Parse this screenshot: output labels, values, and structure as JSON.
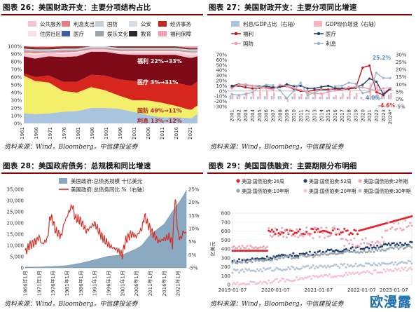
{
  "panels": {
    "p26": {
      "title": "图表 26：美国财政开支：主要分项结构占比",
      "source": "资料来源：Wind，Bloomberg，中信建投证券",
      "ann": {
        "welfare": "福利 22%→33%",
        "medical": "医疗 3%→31%",
        "defense": "国防 49%→11%",
        "interest": "利息 13%→12%"
      }
    },
    "p27": {
      "title": "图表 27：美国财政开支：主要分项同比增速",
      "source": "资料来源：Wind，Bloomberg，中信建投证券",
      "ann": {
        "hi": "25.2%",
        "mid": "4.0%",
        "lo": "-4.6%"
      }
    },
    "p28": {
      "title": "图表 28：美国政府债务：总规模和同比增速",
      "source": "资料来源：Wind，Bloomberg，中信建投证券"
    },
    "p29": {
      "title": "图表 29：美国国债融资：主要期限分布明细",
      "source": "资料来源：Wind，Bloomberg，中信建投证券"
    }
  },
  "watermark": "欧漫露",
  "colors": {
    "titlebar": "#8b0000"
  },
  "chart_data": [
    {
      "id": "fig26",
      "type": "area",
      "title": "图表 26：美国财政开支：主要分项结构占比",
      "xlabel": "",
      "ylabel": "",
      "ylim": [
        0,
        100
      ],
      "x_ticks": [
        "1961",
        "1966",
        "1971",
        "1976",
        "1981",
        "1986",
        "1991",
        "1996",
        "2001",
        "2006",
        "2011",
        "2016",
        "2021"
      ],
      "y_ticks": [
        "0%",
        "10%",
        "20%",
        "30%",
        "40%",
        "50%",
        "60%",
        "70%",
        "80%",
        "90%",
        "100%"
      ],
      "legend": "top",
      "x": [
        1961,
        1965,
        1970,
        1975,
        1980,
        1985,
        1990,
        1995,
        2000,
        2005,
        2010,
        2015,
        2020,
        2021,
        2022,
        2023
      ],
      "series": [
        {
          "name": "利息",
          "color": "#a9c4de",
          "values": [
            13,
            12,
            13,
            15,
            16,
            20,
            20,
            19,
            15,
            11,
            8,
            8,
            7,
            7,
            10,
            12
          ]
        },
        {
          "name": "国防",
          "color": "#f4ef6b",
          "values": [
            49,
            43,
            40,
            27,
            24,
            27,
            23,
            17,
            15,
            19,
            19,
            15,
            11,
            11,
            11,
            11
          ]
        },
        {
          "name": "医疗",
          "color": "#d7261e",
          "values": [
            3,
            5,
            9,
            12,
            14,
            16,
            19,
            21,
            25,
            25,
            27,
            30,
            31,
            31,
            31,
            31
          ]
        },
        {
          "name": "福利",
          "color": "#7f0a17",
          "values": [
            22,
            24,
            25,
            32,
            33,
            30,
            31,
            33,
            34,
            34,
            35,
            36,
            36,
            36,
            34,
            33
          ]
        },
        {
          "name": "公共服务",
          "color": "#f3c3cf",
          "values": [
            4,
            5,
            4,
            4,
            4,
            2,
            2,
            2,
            3,
            3,
            3,
            3,
            4,
            4,
            3,
            3
          ]
        },
        {
          "name": "住房社区",
          "color": "#fbe0e6",
          "values": [
            1,
            2,
            1,
            2,
            2,
            1,
            1,
            2,
            2,
            2,
            2,
            2,
            3,
            3,
            3,
            2
          ]
        },
        {
          "name": "利息支出",
          "color": "#e87d86",
          "values": [
            2,
            2,
            1,
            2,
            1,
            1,
            1,
            1,
            1,
            1,
            1,
            1,
            1,
            1,
            1,
            1
          ]
        },
        {
          "name": "医疗",
          "color": "#3f5da4",
          "values": [
            0,
            0,
            0,
            0,
            0,
            0,
            0,
            0,
            0,
            0,
            0,
            0,
            0,
            0,
            0,
            0
          ]
        },
        {
          "name": "娱乐文化",
          "color": "#9aa5ad",
          "values": [
            1,
            1,
            1,
            1,
            1,
            1,
            1,
            1,
            1,
            1,
            1,
            1,
            1,
            1,
            1,
            1
          ]
        },
        {
          "name": "国防",
          "color": "#c9ced2",
          "values": [
            1,
            1,
            1,
            1,
            1,
            1,
            1,
            1,
            1,
            1,
            1,
            1,
            1,
            1,
            1,
            1
          ]
        },
        {
          "name": "公安",
          "color": "#d5dce3",
          "values": [
            1,
            1,
            1,
            1,
            1,
            1,
            1,
            1,
            1,
            1,
            1,
            1,
            1,
            1,
            1,
            1
          ]
        },
        {
          "name": "教育",
          "color": "#2a2a2a",
          "values": [
            1,
            1,
            1,
            1,
            1,
            1,
            1,
            1,
            1,
            1,
            1,
            1,
            1,
            1,
            1,
            1
          ]
        },
        {
          "name": "经济事务",
          "color": "#c0281f",
          "values": [
            2,
            2,
            2,
            2,
            2,
            1,
            1,
            1,
            1,
            1,
            1,
            1,
            1,
            1,
            1,
            1
          ]
        },
        {
          "name": "福利保障",
          "color": "#f4a0b0",
          "values": [
            0,
            1,
            1,
            1,
            1,
            1,
            1,
            1,
            1,
            1,
            1,
            1,
            1,
            1,
            1,
            1
          ]
        }
      ],
      "annotations": [
        "福利 22%→33%",
        "医疗 3%→31%",
        "国防 49%→11%",
        "利息 13%→12%"
      ]
    },
    {
      "id": "fig27",
      "type": "line",
      "title": "图表 27：美国财政开支：主要分项同比增速",
      "categories": [
        "2001",
        "2002",
        "2003",
        "2004",
        "2005",
        "2006",
        "2007",
        "2008",
        "2009",
        "2010",
        "2011",
        "2012",
        "2013",
        "2014",
        "2015",
        "2016",
        "2017",
        "2018",
        "2019",
        "2020",
        "2021",
        "2022",
        "2023",
        "2024*"
      ],
      "y_left_ticks": [
        "-30%",
        "-20%",
        "-10%",
        "0%",
        "10%",
        "20%",
        "30%",
        "40%",
        "50%",
        "60%",
        "70%"
      ],
      "y_right_ticks": [
        "-5%",
        "0%",
        "5%",
        "10%",
        "15%",
        "20%",
        "25%",
        "30%"
      ],
      "ylim_left": [
        -30,
        70
      ],
      "ylim_right": [
        -5,
        30
      ],
      "legend": "top",
      "series": [
        {
          "name": "利息/GDP占比（右轴）",
          "axis": "right",
          "kind": "bar",
          "color": "#a8c1dc",
          "values": [
            2.5,
            2.0,
            1.8,
            1.7,
            1.8,
            2.0,
            2.1,
            2.1,
            1.9,
            1.7,
            1.9,
            1.6,
            1.5,
            1.5,
            1.4,
            1.5,
            1.6,
            1.7,
            1.8,
            1.6,
            1.5,
            1.9,
            2.4,
            3.1
          ]
        },
        {
          "name": "GDP现价增速（右轴）",
          "axis": "right",
          "kind": "bar",
          "color": "#f5b5c3",
          "values": [
            3.2,
            3.3,
            4.8,
            6.6,
            6.7,
            6.0,
            4.7,
            2.0,
            -2.0,
            3.9,
            3.6,
            4.2,
            3.6,
            4.2,
            4.0,
            2.7,
            4.2,
            5.4,
            4.1,
            -0.9,
            10.7,
            9.8,
            6.2,
            4.0
          ]
        },
        {
          "name": "福利",
          "axis": "left",
          "kind": "line",
          "color": "#c0161b",
          "values": [
            8,
            10,
            7,
            5,
            6,
            6,
            5,
            8,
            9,
            4,
            0,
            -1,
            2,
            3,
            3,
            4,
            3,
            4,
            6,
            45,
            49,
            -2,
            -8,
            4
          ]
        },
        {
          "name": "医疗",
          "axis": "left",
          "kind": "line",
          "color": "#1f3f73",
          "values": [
            10,
            13,
            12,
            10,
            9,
            9,
            7,
            8,
            13,
            9,
            10,
            5,
            5,
            8,
            10,
            6,
            5,
            6,
            7,
            12,
            24,
            18,
            -6,
            5
          ]
        },
        {
          "name": "国防",
          "axis": "left",
          "kind": "line",
          "color": "#f19aae",
          "values": [
            5,
            12,
            13,
            10,
            8,
            5,
            3,
            12,
            9,
            6,
            2,
            -2,
            -5,
            -5,
            -2,
            1,
            2,
            7,
            8,
            7,
            4,
            1,
            5,
            6
          ]
        },
        {
          "name": "利息",
          "axis": "left",
          "kind": "line",
          "color": "#9fb3c6",
          "values": [
            -6,
            -8,
            -6,
            -3,
            8,
            12,
            11,
            1,
            -14,
            0,
            16,
            -8,
            -3,
            2,
            0,
            9,
            10,
            16,
            14,
            -4,
            -1,
            35,
            25,
            25
          ]
        }
      ],
      "annotations": [
        "25.2%",
        "4.0%",
        "-4.6%"
      ]
    },
    {
      "id": "fig28",
      "type": "area",
      "title": "图表 28：美国政府债务：总规模和同比增速",
      "x_ticks": [
        "1966年1月",
        "1971年1月",
        "1976年1月",
        "1981年1月",
        "1986年1月",
        "1991年1月",
        "1996年1月",
        "2001年1月",
        "2006年1月",
        "2011年1月",
        "2016年1月",
        "2021年1月"
      ],
      "y_left_ticks": [
        "0",
        "5,000",
        "10,000",
        "15,000",
        "20,000",
        "25,000",
        "30,000",
        "35,000"
      ],
      "y_right_ticks": [
        "-5%",
        "0%",
        "5%",
        "10%",
        "15%",
        "20%",
        "25%"
      ],
      "ylim_left": [
        0,
        35000
      ],
      "ylim_right": [
        -5,
        25
      ],
      "legend": "top",
      "series": [
        {
          "name": "美国政府:总债务规模 十亿美元",
          "axis": "left",
          "kind": "area",
          "color": "#8aa9c1",
          "x": [
            1966,
            1971,
            1976,
            1981,
            1986,
            1991,
            1996,
            2001,
            2006,
            2008,
            2011,
            2016,
            2020,
            2021,
            2023,
            2024
          ],
          "values": [
            320,
            410,
            620,
            1000,
            2100,
            3600,
            5200,
            5800,
            8500,
            10000,
            14800,
            19500,
            27000,
            28500,
            32300,
            34500
          ]
        },
        {
          "name": "美国政府:总债务同比 %（右轴）",
          "axis": "right",
          "kind": "line",
          "color": "#d7261e",
          "x": [
            1966,
            1968,
            1970,
            1971,
            1972,
            1974,
            1975,
            1976,
            1977,
            1979,
            1980,
            1982,
            1983,
            1984,
            1986,
            1988,
            1990,
            1991,
            1993,
            1995,
            1997,
            1999,
            2001,
            2002,
            2004,
            2006,
            2008,
            2009,
            2010,
            2012,
            2014,
            2016,
            2018,
            2019,
            2020,
            2021,
            2022,
            2023,
            2024
          ],
          "values": [
            1,
            4,
            5,
            7,
            4,
            6,
            15,
            13,
            9,
            7,
            12,
            17,
            19,
            14,
            13,
            9,
            11,
            12,
            8,
            5,
            3,
            2,
            0,
            5,
            8,
            7,
            10,
            15,
            12,
            8,
            5,
            6,
            7,
            4,
            22,
            8,
            6,
            9,
            8
          ]
        }
      ]
    },
    {
      "id": "fig29",
      "type": "scatter",
      "title": "图表 29：美国国债融资：主要期限分布明细",
      "x_ticks": [
        "2019-01-07",
        "2020-01-07",
        "2021-01-07",
        "2022-01-07",
        "2023-01-07"
      ],
      "y_ticks": [
        "0",
        "100",
        "200",
        "300",
        "400",
        "500",
        "600",
        "700",
        "800"
      ],
      "ylabel": "亿美元",
      "ylim": [
        0,
        800
      ],
      "legend": "top",
      "series": [
        {
          "name": "美国:国债拍卖:26周",
          "color": "#e4202a",
          "level_start": 380,
          "level_end": 760
        },
        {
          "name": "美国:国债拍卖:52周",
          "color": "#1f3f73",
          "level_start": 260,
          "level_end": 470
        },
        {
          "name": "美国:国债拍卖:2年期",
          "color": "#f0a8b4",
          "level_start": 400,
          "level_end": 690
        },
        {
          "name": "美国:国债拍卖:10年期",
          "color": "#9aa5ad",
          "level_start": 250,
          "level_end": 420
        },
        {
          "name": "美国:国债拍卖:20年期",
          "color": "#f3c3cf",
          "level_start": 0,
          "level_end": 180
        },
        {
          "name": "美国:国债拍卖:30年期",
          "color": "#b4c5d6",
          "level_start": 150,
          "level_end": 250
        }
      ]
    }
  ]
}
